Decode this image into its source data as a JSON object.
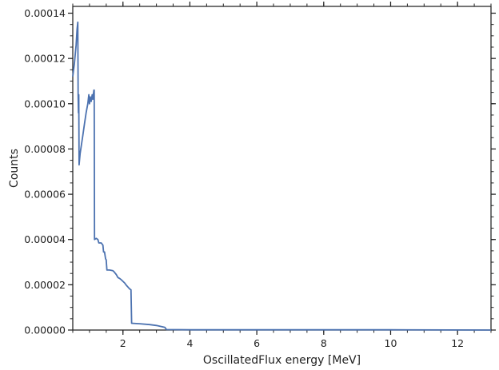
{
  "chart_data": {
    "type": "line",
    "title": "",
    "xlabel": "OscillatedFlux energy [MeV]",
    "ylabel": "Counts",
    "xlim": [
      0.5,
      13.0
    ],
    "ylim": [
      0.0,
      0.000143
    ],
    "x_ticks": [
      2,
      4,
      6,
      8,
      10,
      12
    ],
    "x_tick_labels": [
      "2",
      "4",
      "6",
      "8",
      "10",
      "12"
    ],
    "y_ticks": [
      0.0,
      2e-05,
      4e-05,
      6e-05,
      8e-05,
      0.0001,
      0.00012,
      0.00014
    ],
    "y_tick_labels": [
      "0.00000",
      "0.00002",
      "0.00004",
      "0.00006",
      "0.00008",
      "0.00010",
      "0.00012",
      "0.00014"
    ],
    "grid": false,
    "line_color": "#4c72b0",
    "series": [
      {
        "values": [
          [
            0.5,
            0.000112
          ],
          [
            0.55,
            0.000118
          ],
          [
            0.6,
            0.000126
          ],
          [
            0.63,
            0.000133
          ],
          [
            0.65,
            0.000136
          ],
          [
            0.66,
            0.000104
          ],
          [
            0.67,
            9.6e-05
          ],
          [
            0.68,
            0.000104
          ],
          [
            0.69,
            7.3e-05
          ],
          [
            0.72,
            7.8e-05
          ],
          [
            0.76,
            8.2e-05
          ],
          [
            0.8,
            8.6e-05
          ],
          [
            0.85,
            9.1e-05
          ],
          [
            0.9,
            9.6e-05
          ],
          [
            0.95,
            0.0001
          ],
          [
            0.98,
            0.000104
          ],
          [
            1.0,
            0.0001
          ],
          [
            1.02,
            0.000103
          ],
          [
            1.05,
            0.000101
          ],
          [
            1.08,
            0.000104
          ],
          [
            1.1,
            0.000102
          ],
          [
            1.13,
            0.000106
          ],
          [
            1.14,
            0.000106
          ],
          [
            1.15,
            4e-05
          ],
          [
            1.2,
            4.05e-05
          ],
          [
            1.25,
            4e-05
          ],
          [
            1.28,
            3.85e-05
          ],
          [
            1.35,
            3.85e-05
          ],
          [
            1.4,
            3.75e-05
          ],
          [
            1.42,
            3.45e-05
          ],
          [
            1.45,
            3.45e-05
          ],
          [
            1.48,
            3.15e-05
          ],
          [
            1.5,
            3.1e-05
          ],
          [
            1.52,
            2.65e-05
          ],
          [
            1.6,
            2.65e-05
          ],
          [
            1.7,
            2.62e-05
          ],
          [
            1.73,
            2.58e-05
          ],
          [
            1.8,
            2.45e-05
          ],
          [
            1.85,
            2.32e-05
          ],
          [
            1.9,
            2.28e-05
          ],
          [
            1.95,
            2.22e-05
          ],
          [
            2.0,
            2.15e-05
          ],
          [
            2.05,
            2.08e-05
          ],
          [
            2.1,
            1.98e-05
          ],
          [
            2.15,
            1.9e-05
          ],
          [
            2.2,
            1.82e-05
          ],
          [
            2.24,
            1.78e-05
          ],
          [
            2.26,
            3e-06
          ],
          [
            2.5,
            2.8e-06
          ],
          [
            2.8,
            2.4e-06
          ],
          [
            3.0,
            2e-06
          ],
          [
            3.25,
            1.2e-06
          ],
          [
            3.3,
            2e-07
          ],
          [
            4.0,
            1e-07
          ],
          [
            6.0,
            1e-07
          ],
          [
            8.0,
            1e-07
          ],
          [
            10.0,
            1e-07
          ],
          [
            13.0,
            0.0
          ]
        ]
      }
    ]
  }
}
